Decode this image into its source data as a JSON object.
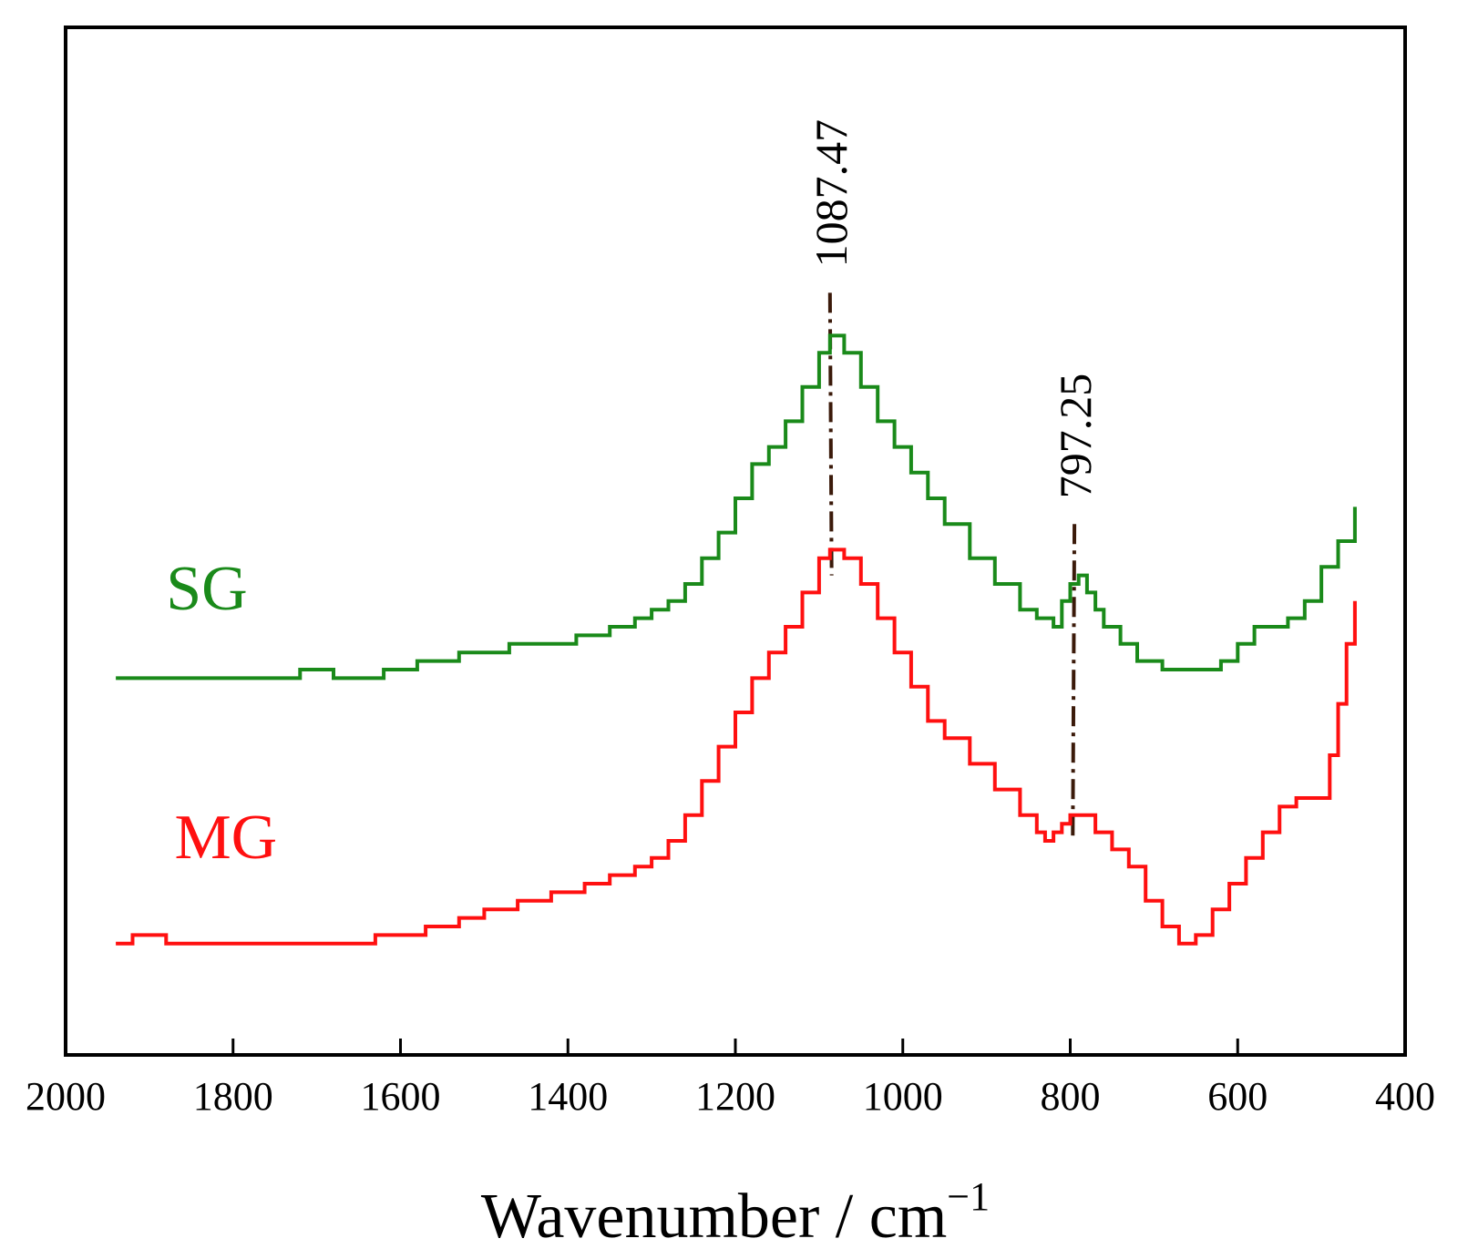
{
  "chart_data": {
    "type": "line",
    "title": "",
    "xlabel": "Wavenumber / cm",
    "xlabel_superscript": "−1",
    "ylabel": "",
    "xlim": [
      2000,
      400
    ],
    "ylim": [
      0,
      12
    ],
    "xticks": [
      2000,
      1800,
      1600,
      1400,
      1200,
      1000,
      800,
      600,
      400
    ],
    "grid": false,
    "series": [
      {
        "name": "SG",
        "color": "#1a8a1a",
        "label_position": [
          1880,
          5.2
        ],
        "x": [
          1940,
          1720,
          1700,
          1680,
          1620,
          1580,
          1530,
          1470,
          1390,
          1350,
          1320,
          1300,
          1280,
          1260,
          1240,
          1220,
          1200,
          1180,
          1160,
          1140,
          1120,
          1100,
          1087,
          1070,
          1050,
          1030,
          1010,
          990,
          970,
          950,
          920,
          890,
          860,
          840,
          820,
          810,
          800,
          790,
          780,
          770,
          760,
          740,
          720,
          700,
          690,
          680,
          670,
          650,
          620,
          600,
          580,
          560,
          540,
          520,
          500,
          480,
          460
        ],
        "y": [
          4.4,
          4.5,
          4.5,
          4.4,
          4.5,
          4.6,
          4.7,
          4.8,
          4.9,
          5.0,
          5.1,
          5.2,
          5.3,
          5.5,
          5.8,
          6.1,
          6.5,
          6.9,
          7.1,
          7.4,
          7.8,
          8.2,
          8.4,
          8.2,
          7.8,
          7.4,
          7.1,
          6.8,
          6.5,
          6.2,
          5.8,
          5.5,
          5.2,
          5.1,
          5.0,
          5.3,
          5.5,
          5.6,
          5.4,
          5.2,
          5.0,
          4.8,
          4.6,
          4.6,
          4.5,
          4.5,
          4.5,
          4.5,
          4.6,
          4.8,
          5.0,
          5.0,
          5.1,
          5.3,
          5.7,
          6.0,
          6.4
        ]
      },
      {
        "name": "MG",
        "color": "#ff1010",
        "label_position": [
          1870,
          2.3
        ],
        "x": [
          1940,
          1920,
          1900,
          1880,
          1850,
          1800,
          1700,
          1630,
          1570,
          1530,
          1500,
          1460,
          1420,
          1380,
          1350,
          1320,
          1300,
          1280,
          1260,
          1240,
          1220,
          1200,
          1180,
          1160,
          1140,
          1120,
          1100,
          1087,
          1070,
          1050,
          1030,
          1010,
          990,
          970,
          950,
          920,
          890,
          860,
          840,
          830,
          820,
          810,
          800,
          790,
          780,
          770,
          750,
          730,
          710,
          690,
          670,
          650,
          630,
          610,
          590,
          570,
          550,
          530,
          510,
          490,
          480,
          470,
          460
        ],
        "y": [
          1.3,
          1.4,
          1.4,
          1.3,
          1.3,
          1.3,
          1.3,
          1.4,
          1.5,
          1.6,
          1.7,
          1.8,
          1.9,
          2.0,
          2.1,
          2.2,
          2.3,
          2.5,
          2.8,
          3.2,
          3.6,
          4.0,
          4.4,
          4.7,
          5.0,
          5.4,
          5.8,
          5.9,
          5.8,
          5.5,
          5.1,
          4.7,
          4.3,
          3.9,
          3.7,
          3.4,
          3.1,
          2.8,
          2.6,
          2.5,
          2.6,
          2.7,
          2.8,
          2.8,
          2.8,
          2.6,
          2.4,
          2.2,
          1.8,
          1.5,
          1.3,
          1.4,
          1.7,
          2.0,
          2.3,
          2.6,
          2.9,
          3.0,
          3.0,
          3.5,
          4.1,
          4.8,
          5.3
        ]
      }
    ],
    "annotations": [
      {
        "label": "1087.47",
        "x": 1087,
        "y_top": 8.9,
        "y_bottom": 5.6,
        "x_bottom": 1085,
        "color": "#3b1a0a"
      },
      {
        "label": "797.25",
        "x": 795,
        "y_top": 6.2,
        "y_bottom": 2.5,
        "x_bottom": 797,
        "color": "#3b1a0a"
      }
    ]
  }
}
